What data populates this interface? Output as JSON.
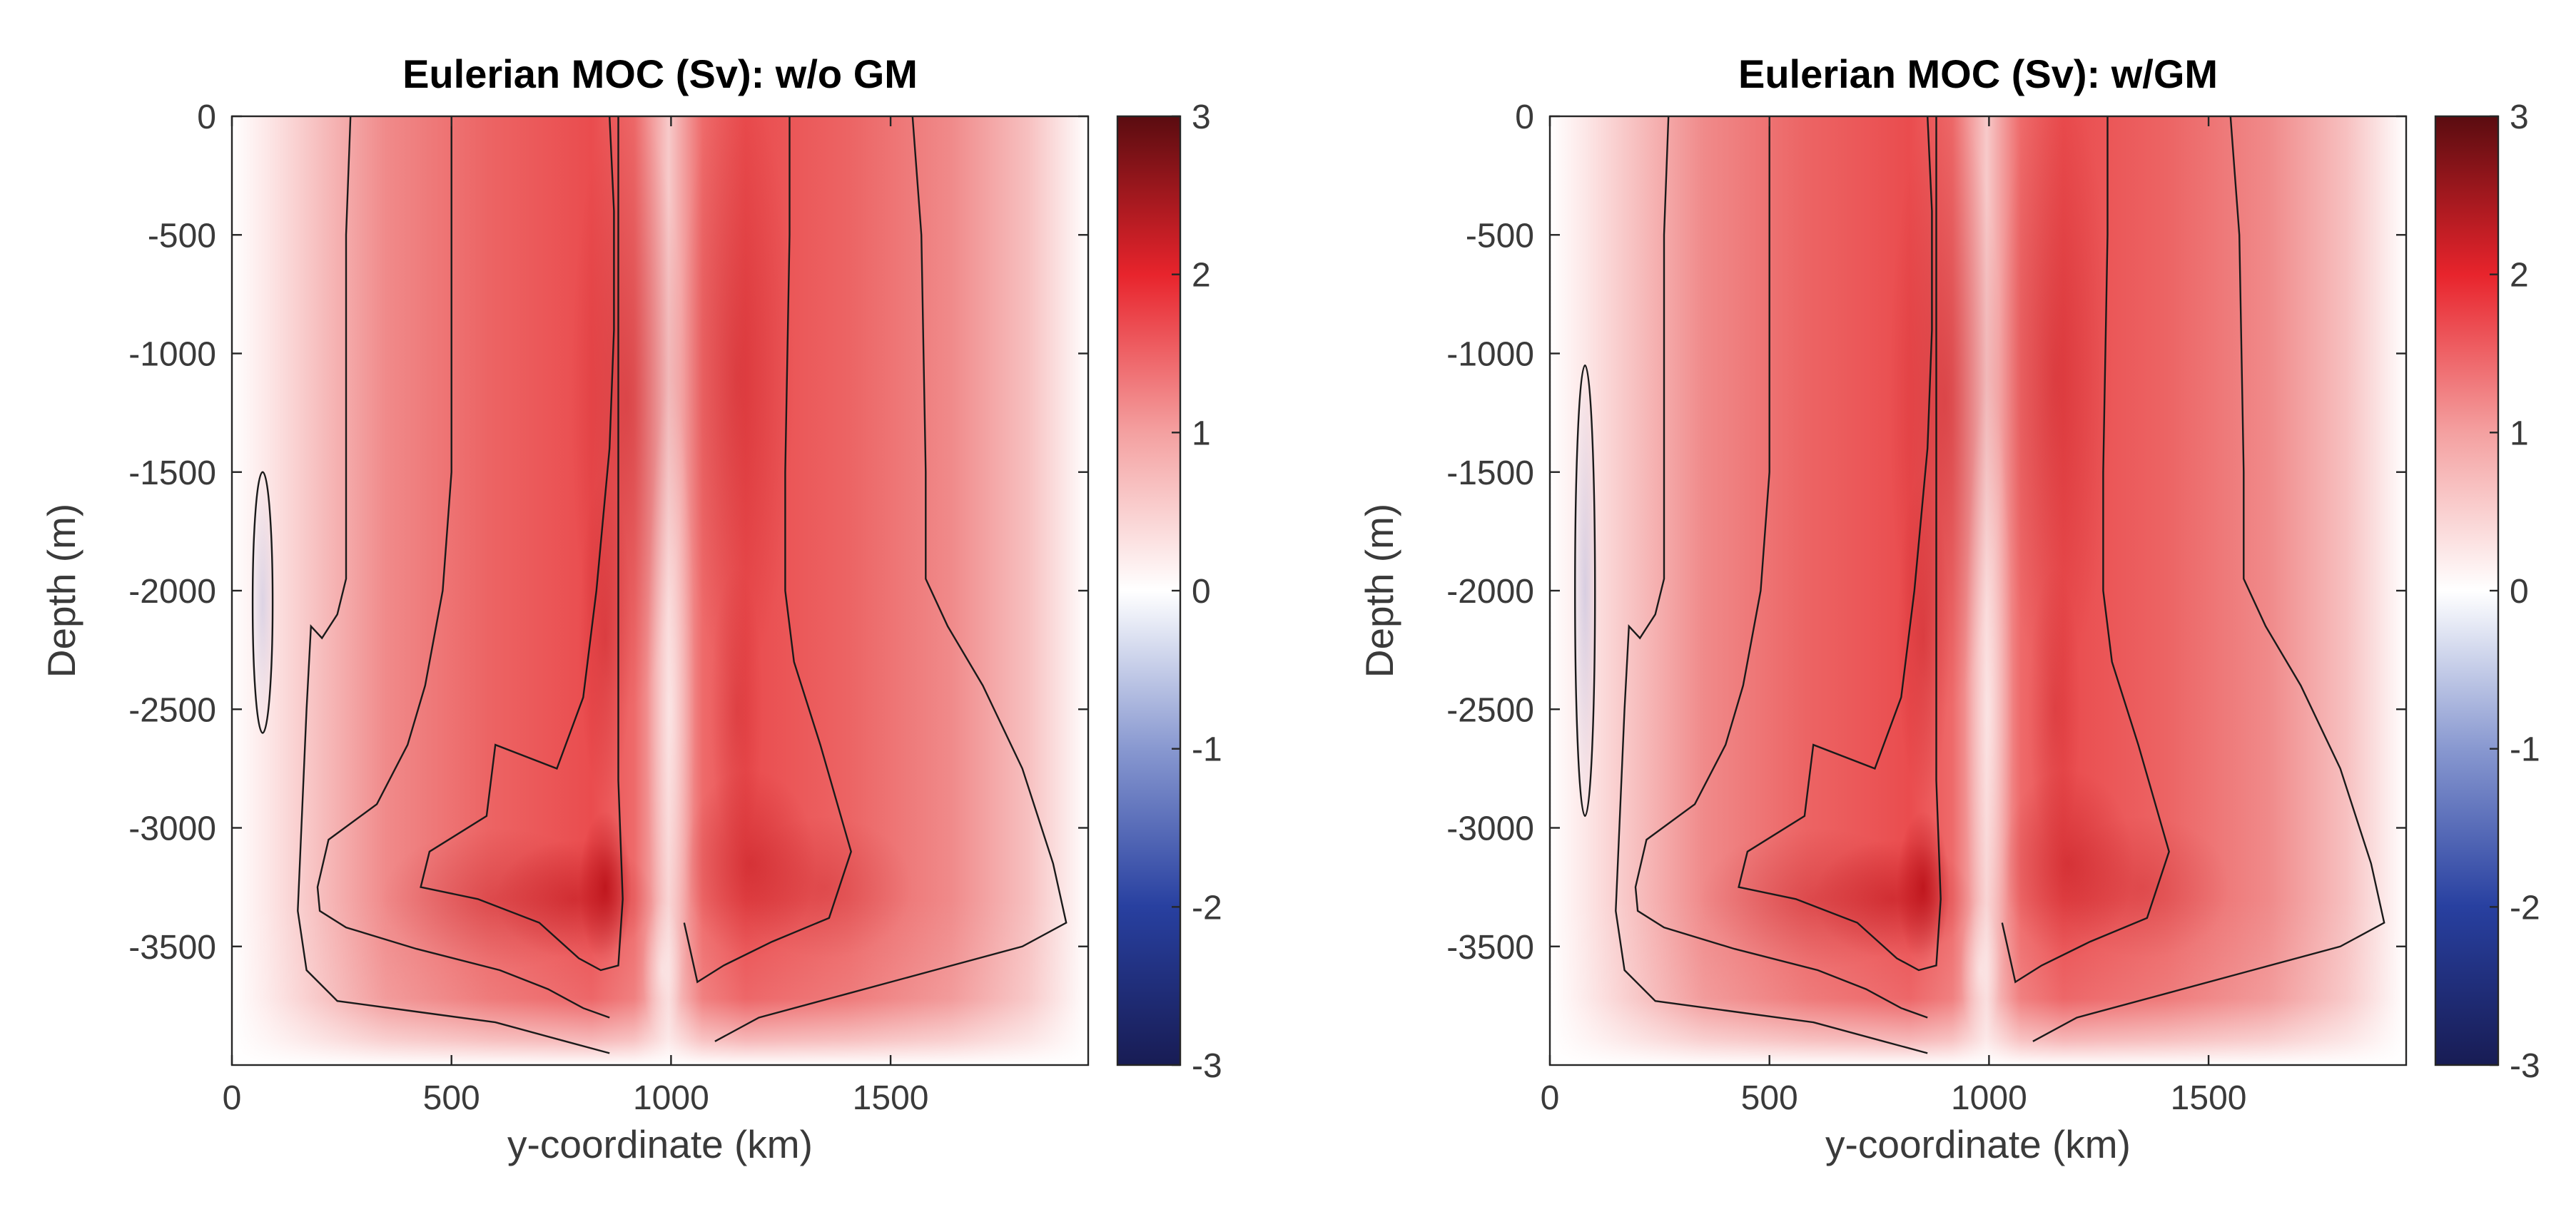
{
  "chart_data": [
    {
      "type": "heatmap",
      "title": "Eulerian MOC (Sv): w/o GM",
      "xlabel": "y-coordinate (km)",
      "ylabel": "Depth (m)",
      "xlim": [
        0,
        1950
      ],
      "ylim": [
        -4000,
        0
      ],
      "xticks": [
        "0",
        "500",
        "1000",
        "1500"
      ],
      "xtick_values": [
        0,
        500,
        1000,
        1500
      ],
      "yticks": [
        "0",
        "-500",
        "-1000",
        "-1500",
        "-2000",
        "-2500",
        "-3000",
        "-3500"
      ],
      "ytick_values": [
        0,
        -500,
        -1000,
        -1500,
        -2000,
        -2500,
        -3000,
        -3500
      ],
      "colorbar": {
        "range": [
          -3,
          3
        ],
        "ticks": [
          "3",
          "2",
          "1",
          "0",
          "-1",
          "-2",
          "-3"
        ],
        "tick_values": [
          3,
          2,
          1,
          0,
          -1,
          -2,
          -3
        ],
        "colormap": [
          "#181c54",
          "#2840a0",
          "#8898d0",
          "#ffffff",
          "#f4a0a0",
          "#e8242c",
          "#5a0c10"
        ]
      },
      "field": {
        "cells": [
          {
            "x": 900,
            "y": -1200,
            "sx": 130,
            "sy": 1300,
            "a": 0.35
          },
          {
            "x": 1150,
            "y": -1100,
            "sx": 130,
            "sy": 1300,
            "a": 0.3
          },
          {
            "x": 850,
            "y": -3250,
            "sx": 60,
            "sy": 320,
            "a": 0.8
          },
          {
            "x": 780,
            "y": -3300,
            "sx": 180,
            "sy": 250,
            "a": 0.45
          },
          {
            "x": 1180,
            "y": -3150,
            "sx": 150,
            "sy": 400,
            "a": 0.4
          },
          {
            "x": 1150,
            "y": -2500,
            "sx": 60,
            "sy": 600,
            "a": 0.25
          },
          {
            "x": 600,
            "y": -3300,
            "sx": 260,
            "sy": 300,
            "a": 0.3
          },
          {
            "x": 1350,
            "y": -3250,
            "sx": 200,
            "sy": 300,
            "a": 0.25
          },
          {
            "x": 850,
            "y": -2200,
            "sx": 60,
            "sy": 700,
            "a": 0.3
          }
        ],
        "lows": [
          {
            "x": 1000,
            "y": -2500,
            "sx": 55,
            "sy": 1400,
            "a": 0.5
          },
          {
            "x": 980,
            "y": -3600,
            "sx": 45,
            "sy": 300,
            "a": 0.5
          }
        ],
        "weak_negative": {
          "x": 70,
          "y": -2050,
          "sx": 30,
          "sy": 550,
          "a": 0.35
        }
      }
    },
    {
      "type": "heatmap",
      "title": "Eulerian MOC (Sv): w/GM",
      "xlabel": "y-coordinate (km)",
      "ylabel": "Depth (m)",
      "xlim": [
        0,
        1950
      ],
      "ylim": [
        -4000,
        0
      ],
      "xticks": [
        "0",
        "500",
        "1000",
        "1500"
      ],
      "xtick_values": [
        0,
        500,
        1000,
        1500
      ],
      "yticks": [
        "0",
        "-500",
        "-1000",
        "-1500",
        "-2000",
        "-2500",
        "-3000",
        "-3500"
      ],
      "ytick_values": [
        0,
        -500,
        -1000,
        -1500,
        -2000,
        -2500,
        -3000,
        -3500
      ],
      "colorbar": {
        "range": [
          -3,
          3
        ],
        "ticks": [
          "3",
          "2",
          "1",
          "0",
          "-1",
          "-2",
          "-3"
        ],
        "tick_values": [
          3,
          2,
          1,
          0,
          -1,
          -2,
          -3
        ],
        "colormap": [
          "#181c54",
          "#2840a0",
          "#8898d0",
          "#ffffff",
          "#f4a0a0",
          "#e8242c",
          "#5a0c10"
        ]
      },
      "field": {
        "cells": [
          {
            "x": 900,
            "y": -1200,
            "sx": 130,
            "sy": 1300,
            "a": 0.35
          },
          {
            "x": 1150,
            "y": -1100,
            "sx": 130,
            "sy": 1300,
            "a": 0.3
          },
          {
            "x": 850,
            "y": -3250,
            "sx": 60,
            "sy": 320,
            "a": 0.8
          },
          {
            "x": 780,
            "y": -3300,
            "sx": 180,
            "sy": 250,
            "a": 0.45
          },
          {
            "x": 1180,
            "y": -3150,
            "sx": 150,
            "sy": 400,
            "a": 0.4
          },
          {
            "x": 1150,
            "y": -2500,
            "sx": 60,
            "sy": 600,
            "a": 0.25
          },
          {
            "x": 600,
            "y": -3300,
            "sx": 260,
            "sy": 300,
            "a": 0.3
          },
          {
            "x": 1350,
            "y": -3250,
            "sx": 200,
            "sy": 300,
            "a": 0.25
          },
          {
            "x": 850,
            "y": -2200,
            "sx": 60,
            "sy": 700,
            "a": 0.3
          }
        ],
        "lows": [
          {
            "x": 1000,
            "y": -2500,
            "sx": 55,
            "sy": 1400,
            "a": 0.5
          },
          {
            "x": 980,
            "y": -3600,
            "sx": 45,
            "sy": 300,
            "a": 0.5
          }
        ],
        "weak_negative": {
          "x": 80,
          "y": -2000,
          "sx": 30,
          "sy": 950,
          "a": 0.4
        }
      }
    }
  ]
}
